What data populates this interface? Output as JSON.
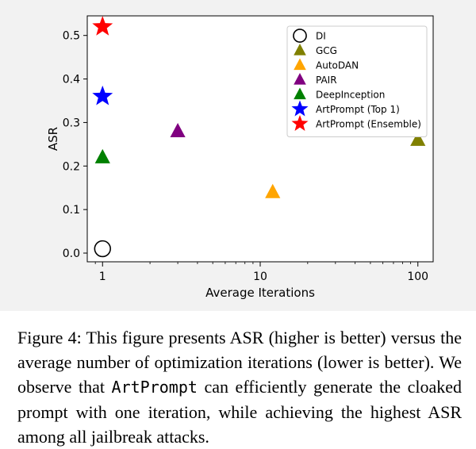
{
  "chart_data": {
    "type": "scatter",
    "xlabel": "Average Iterations",
    "ylabel": "ASR",
    "xscale": "log",
    "xlim": [
      0.8,
      125
    ],
    "ylim": [
      -0.02,
      0.545
    ],
    "xticks": [
      1,
      10,
      100
    ],
    "xtick_labels": [
      "1",
      "10",
      "100"
    ],
    "yticks": [
      0.0,
      0.1,
      0.2,
      0.3,
      0.4,
      0.5
    ],
    "ytick_labels": [
      "0.0",
      "0.1",
      "0.2",
      "0.3",
      "0.4",
      "0.5"
    ],
    "legend_position": "top-right",
    "grid": false,
    "series": [
      {
        "name": "DI",
        "marker": "circle-open",
        "color": "#000000",
        "x": 1,
        "y": 0.01
      },
      {
        "name": "GCG",
        "marker": "triangle",
        "color": "#808000",
        "x": 100,
        "y": 0.26
      },
      {
        "name": "AutoDAN",
        "marker": "triangle",
        "color": "#ffa500",
        "x": 12,
        "y": 0.14
      },
      {
        "name": "PAIR",
        "marker": "triangle",
        "color": "#800080",
        "x": 3,
        "y": 0.28
      },
      {
        "name": "DeepInception",
        "marker": "triangle",
        "color": "#008000",
        "x": 1,
        "y": 0.22
      },
      {
        "name": "ArtPrompt (Top 1)",
        "marker": "star",
        "color": "#0000ff",
        "x": 1,
        "y": 0.36
      },
      {
        "name": "ArtPrompt (Ensemble)",
        "marker": "star",
        "color": "#ff0000",
        "x": 1,
        "y": 0.52
      }
    ]
  },
  "caption": {
    "part1": "Figure 4: This figure presents ASR (higher is better) versus the average number of optimization iterations (lower is better). We observe that ",
    "code": "ArtPrompt",
    "part2": " can efficiently generate the cloaked prompt with one iteration, while achieving the highest ASR among all jailbreak attacks."
  }
}
